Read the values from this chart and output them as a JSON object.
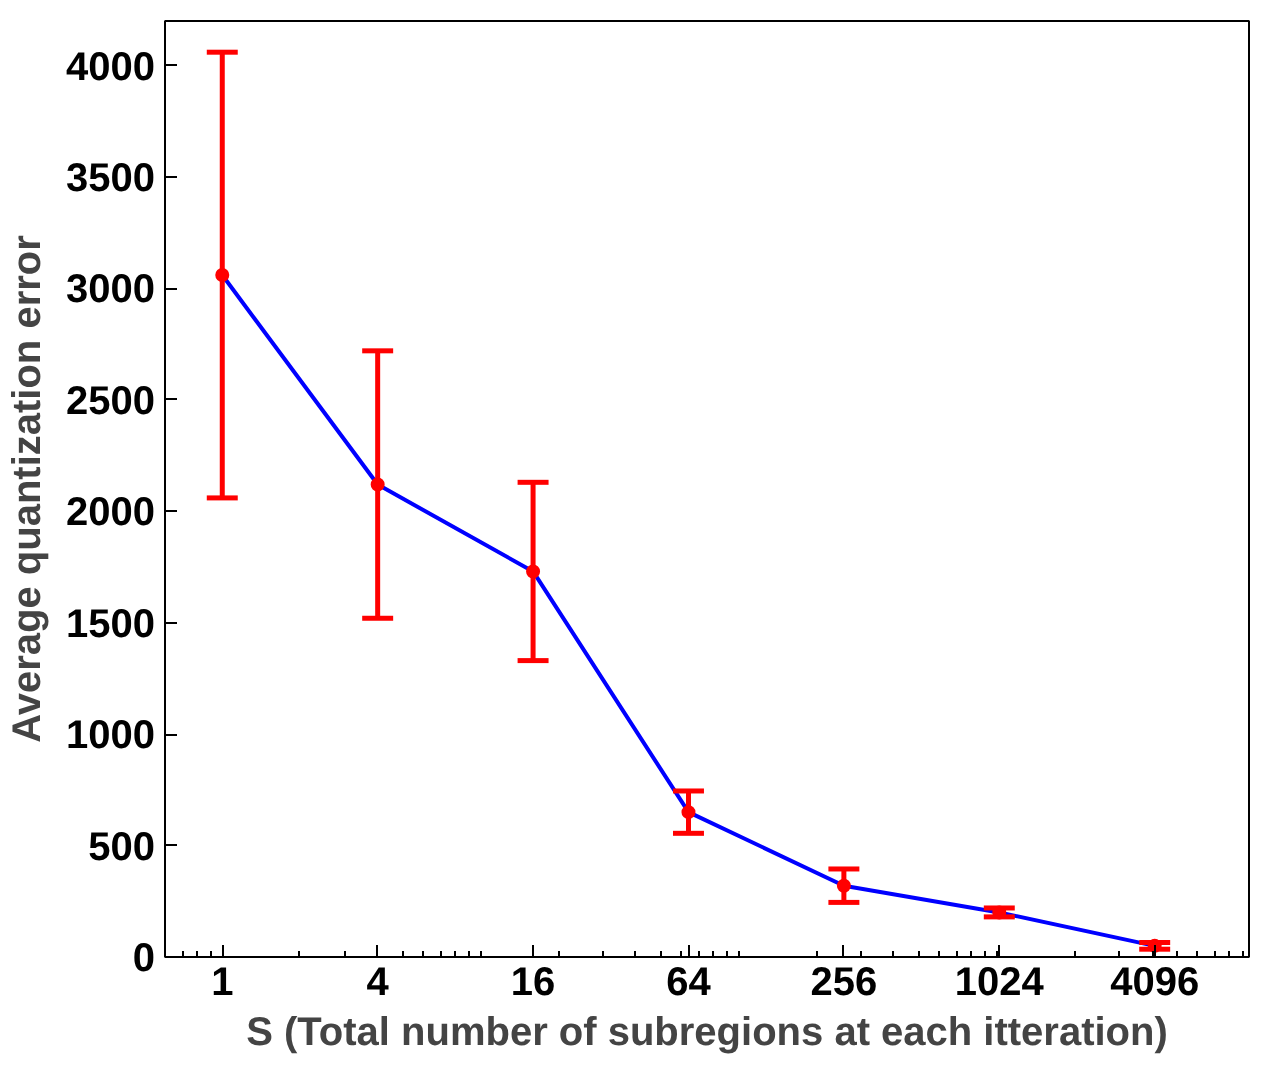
{
  "chart_data": {
    "type": "line",
    "xlabel": "S (Total number of subregions at each itteration)",
    "ylabel": "Average quantization error",
    "log": "x",
    "x": [
      1,
      4,
      16,
      64,
      256,
      1024,
      4096
    ],
    "series": [
      {
        "color": "#0000ff",
        "values": [
          3060,
          2120,
          1730,
          650,
          320,
          200,
          50
        ],
        "errors": [
          1000,
          600,
          400,
          95,
          75,
          20,
          15
        ]
      }
    ],
    "xlim": [
      0.6,
      9500
    ],
    "xticks": [
      1,
      4,
      16,
      64,
      256,
      1024,
      4096
    ],
    "ylim": [
      0,
      4200
    ],
    "yticks": [
      0,
      500,
      1000,
      1500,
      2000,
      2500,
      3000,
      3500,
      4000
    ],
    "grid": false,
    "marker": "circle",
    "line_style": "solid"
  }
}
